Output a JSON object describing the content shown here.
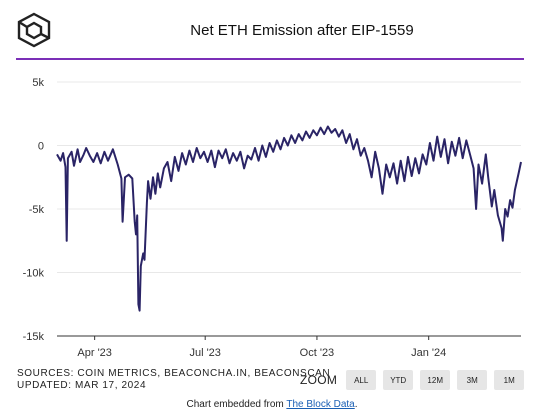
{
  "header": {
    "title": "Net ETH Emission after EIP-1559"
  },
  "logo_icon": "the-block-cube-logo",
  "colors": {
    "accent": "#7b2fb7",
    "line": "#2a2466",
    "grid": "#e8e8e8"
  },
  "footer": {
    "sources_line": "SOURCES: COIN METRICS, BEACONCHA.IN, BEACONSCAN",
    "updated_line": "UPDATED: MAR 17, 2024",
    "zoom_label": "ZOOM",
    "zoom_buttons": [
      "ALL",
      "YTD",
      "12M",
      "3M",
      "1M"
    ],
    "embed_prefix": "Chart embedded from ",
    "embed_link": "The Block Data",
    "embed_suffix": "."
  },
  "chart_data": {
    "type": "line",
    "title": "Net ETH Emission after EIP-1559",
    "xlabel": "",
    "ylabel": "",
    "ylim": [
      -15000,
      5000
    ],
    "yticks": [
      5000,
      0,
      -5000,
      -10000,
      -15000
    ],
    "ytick_labels": [
      "5k",
      "0",
      "-5k",
      "-10k",
      "-15k"
    ],
    "xticks": [
      "2023-04-01",
      "2023-07-01",
      "2023-10-01",
      "2024-01-01"
    ],
    "xtick_labels": [
      "Apr '23",
      "Jul '23",
      "Oct '23",
      "Jan '24"
    ],
    "xlim": [
      "2023-03-01",
      "2024-03-17"
    ],
    "grid": "horizontal",
    "series": [
      {
        "name": "",
        "points": [
          [
            "2023-03-01",
            -700
          ],
          [
            "2023-03-04",
            -1200
          ],
          [
            "2023-03-06",
            -600
          ],
          [
            "2023-03-08",
            -1700
          ],
          [
            "2023-03-09",
            -7500
          ],
          [
            "2023-03-10",
            -1000
          ],
          [
            "2023-03-13",
            -500
          ],
          [
            "2023-03-15",
            -1600
          ],
          [
            "2023-03-18",
            -300
          ],
          [
            "2023-03-20",
            -1300
          ],
          [
            "2023-03-23",
            -700
          ],
          [
            "2023-03-25",
            -200
          ],
          [
            "2023-03-28",
            -800
          ],
          [
            "2023-03-31",
            -1300
          ],
          [
            "2023-04-03",
            -600
          ],
          [
            "2023-04-06",
            -1400
          ],
          [
            "2023-04-09",
            -500
          ],
          [
            "2023-04-12",
            -1200
          ],
          [
            "2023-04-16",
            -300
          ],
          [
            "2023-04-20",
            -1500
          ],
          [
            "2023-04-23",
            -2600
          ],
          [
            "2023-04-24",
            -6000
          ],
          [
            "2023-04-26",
            -2500
          ],
          [
            "2023-04-29",
            -2300
          ],
          [
            "2023-05-02",
            -2600
          ],
          [
            "2023-05-04",
            -6000
          ],
          [
            "2023-05-05",
            -7000
          ],
          [
            "2023-05-06",
            -5500
          ],
          [
            "2023-05-07",
            -12500
          ],
          [
            "2023-05-08",
            -13000
          ],
          [
            "2023-05-09",
            -9500
          ],
          [
            "2023-05-11",
            -8500
          ],
          [
            "2023-05-12",
            -9000
          ],
          [
            "2023-05-14",
            -4500
          ],
          [
            "2023-05-15",
            -2800
          ],
          [
            "2023-05-17",
            -4200
          ],
          [
            "2023-05-19",
            -2500
          ],
          [
            "2023-05-21",
            -3800
          ],
          [
            "2023-05-23",
            -2200
          ],
          [
            "2023-05-25",
            -3300
          ],
          [
            "2023-05-28",
            -1800
          ],
          [
            "2023-05-31",
            -1300
          ],
          [
            "2023-06-03",
            -2800
          ],
          [
            "2023-06-06",
            -900
          ],
          [
            "2023-06-09",
            -2000
          ],
          [
            "2023-06-12",
            -600
          ],
          [
            "2023-06-15",
            -1500
          ],
          [
            "2023-06-18",
            -400
          ],
          [
            "2023-06-21",
            -1300
          ],
          [
            "2023-06-24",
            -200
          ],
          [
            "2023-06-27",
            -1000
          ],
          [
            "2023-06-30",
            -500
          ],
          [
            "2023-07-03",
            -1300
          ],
          [
            "2023-07-06",
            -400
          ],
          [
            "2023-07-09",
            -1700
          ],
          [
            "2023-07-12",
            -400
          ],
          [
            "2023-07-15",
            -1000
          ],
          [
            "2023-07-18",
            -300
          ],
          [
            "2023-07-21",
            -1400
          ],
          [
            "2023-07-24",
            -600
          ],
          [
            "2023-07-27",
            -1200
          ],
          [
            "2023-07-30",
            -500
          ],
          [
            "2023-08-02",
            -1800
          ],
          [
            "2023-08-05",
            -800
          ],
          [
            "2023-08-08",
            -1100
          ],
          [
            "2023-08-11",
            -200
          ],
          [
            "2023-08-14",
            -1200
          ],
          [
            "2023-08-17",
            0
          ],
          [
            "2023-08-20",
            -900
          ],
          [
            "2023-08-23",
            200
          ],
          [
            "2023-08-26",
            -500
          ],
          [
            "2023-08-29",
            400
          ],
          [
            "2023-09-01",
            -300
          ],
          [
            "2023-09-04",
            600
          ],
          [
            "2023-09-07",
            0
          ],
          [
            "2023-09-10",
            800
          ],
          [
            "2023-09-13",
            200
          ],
          [
            "2023-09-16",
            900
          ],
          [
            "2023-09-19",
            400
          ],
          [
            "2023-09-22",
            1100
          ],
          [
            "2023-09-25",
            600
          ],
          [
            "2023-09-28",
            1200
          ],
          [
            "2023-10-01",
            800
          ],
          [
            "2023-10-04",
            1400
          ],
          [
            "2023-10-07",
            900
          ],
          [
            "2023-10-10",
            1500
          ],
          [
            "2023-10-13",
            1000
          ],
          [
            "2023-10-16",
            1300
          ],
          [
            "2023-10-19",
            700
          ],
          [
            "2023-10-22",
            1200
          ],
          [
            "2023-10-25",
            200
          ],
          [
            "2023-10-28",
            900
          ],
          [
            "2023-10-31",
            -300
          ],
          [
            "2023-11-03",
            500
          ],
          [
            "2023-11-06",
            -800
          ],
          [
            "2023-11-09",
            -200
          ],
          [
            "2023-11-12",
            -1200
          ],
          [
            "2023-11-15",
            -2500
          ],
          [
            "2023-11-18",
            -500
          ],
          [
            "2023-11-21",
            -1800
          ],
          [
            "2023-11-24",
            -3800
          ],
          [
            "2023-11-27",
            -1500
          ],
          [
            "2023-11-30",
            -2500
          ],
          [
            "2023-12-03",
            -1400
          ],
          [
            "2023-12-06",
            -3000
          ],
          [
            "2023-12-09",
            -1200
          ],
          [
            "2023-12-12",
            -2800
          ],
          [
            "2023-12-15",
            -900
          ],
          [
            "2023-12-18",
            -2400
          ],
          [
            "2023-12-21",
            -1000
          ],
          [
            "2023-12-24",
            -2200
          ],
          [
            "2023-12-27",
            -700
          ],
          [
            "2023-12-30",
            -1500
          ],
          [
            "2024-01-02",
            200
          ],
          [
            "2024-01-05",
            -1200
          ],
          [
            "2024-01-08",
            700
          ],
          [
            "2024-01-11",
            -900
          ],
          [
            "2024-01-14",
            500
          ],
          [
            "2024-01-17",
            -1400
          ],
          [
            "2024-01-20",
            300
          ],
          [
            "2024-01-23",
            -800
          ],
          [
            "2024-01-26",
            600
          ],
          [
            "2024-01-29",
            -1000
          ],
          [
            "2024-02-01",
            400
          ],
          [
            "2024-02-04",
            -700
          ],
          [
            "2024-02-07",
            -1800
          ],
          [
            "2024-02-09",
            -5000
          ],
          [
            "2024-02-11",
            -1500
          ],
          [
            "2024-02-14",
            -3000
          ],
          [
            "2024-02-17",
            -700
          ],
          [
            "2024-02-19",
            -2500
          ],
          [
            "2024-02-22",
            -4800
          ],
          [
            "2024-02-24",
            -3500
          ],
          [
            "2024-02-27",
            -5500
          ],
          [
            "2024-03-01",
            -6500
          ],
          [
            "2024-03-02",
            -7500
          ],
          [
            "2024-03-04",
            -5000
          ],
          [
            "2024-03-06",
            -5600
          ],
          [
            "2024-03-08",
            -4300
          ],
          [
            "2024-03-10",
            -4900
          ],
          [
            "2024-03-12",
            -3500
          ],
          [
            "2024-03-15",
            -2200
          ],
          [
            "2024-03-17",
            -1300
          ]
        ]
      }
    ]
  }
}
